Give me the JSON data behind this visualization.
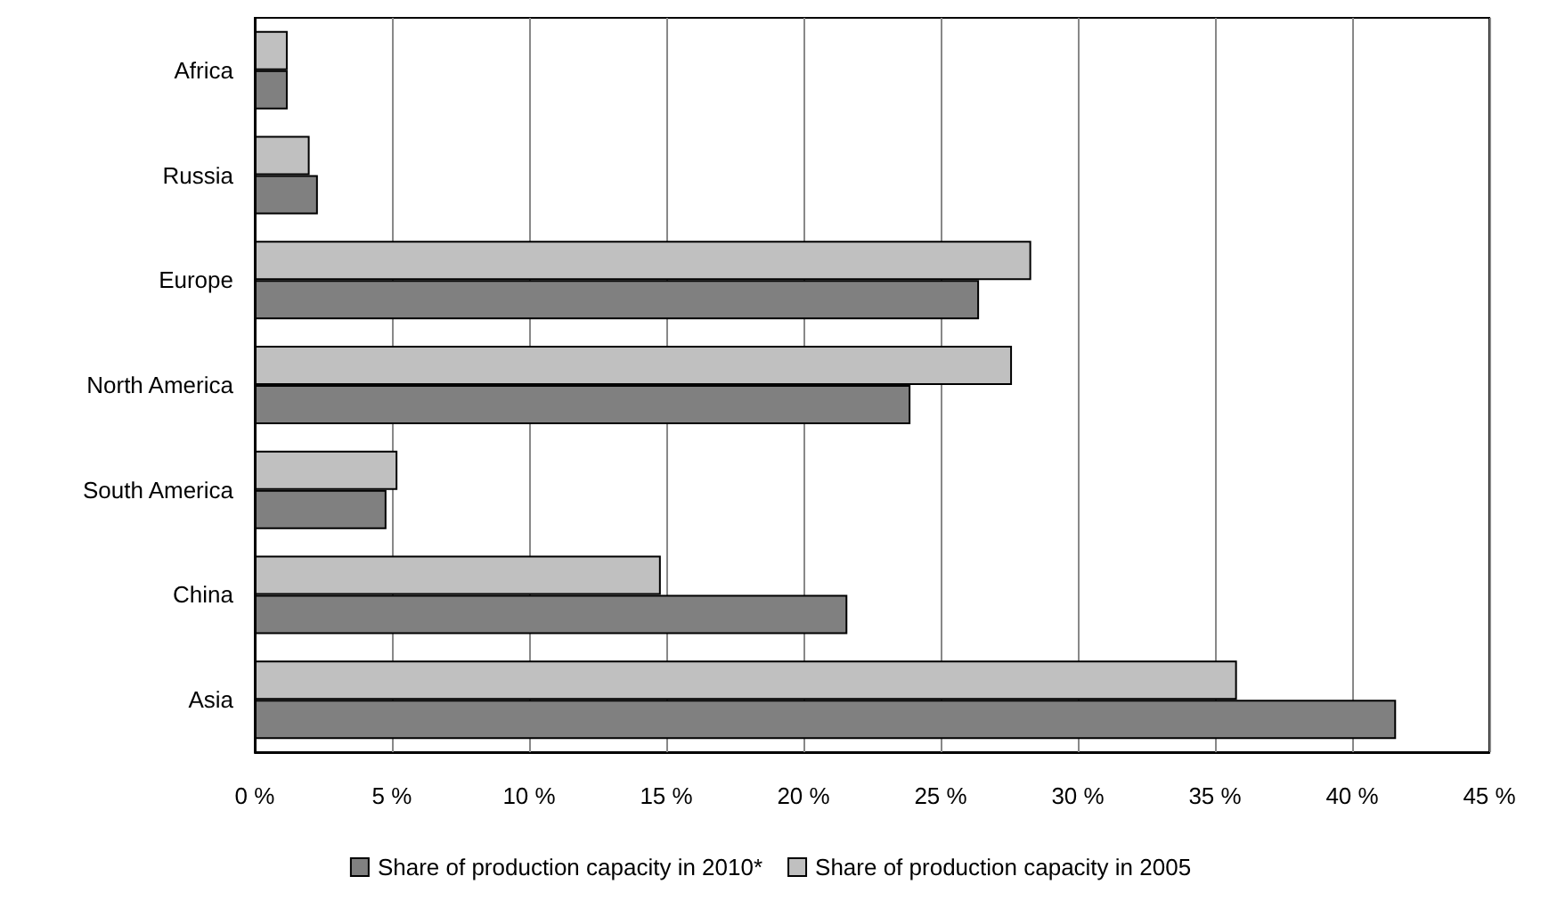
{
  "chart_data": {
    "type": "bar",
    "orientation": "horizontal",
    "categories": [
      "Africa",
      "Russia",
      "Europe",
      "North America",
      "South America",
      "China",
      "Asia"
    ],
    "series": [
      {
        "name": "Share of production capacity in 2010*",
        "color": "#808080",
        "values": [
          1.2,
          2.3,
          26.4,
          23.9,
          4.8,
          21.6,
          41.6
        ]
      },
      {
        "name": "Share of production capacity in 2005",
        "color": "#c0c0c0",
        "values": [
          1.2,
          2.0,
          28.3,
          27.6,
          5.2,
          14.8,
          35.8
        ]
      }
    ],
    "xlim": [
      0,
      45
    ],
    "xticks": [
      {
        "value": 0,
        "label": "0 %"
      },
      {
        "value": 5,
        "label": "5 %"
      },
      {
        "value": 10,
        "label": "10 %"
      },
      {
        "value": 15,
        "label": "15 %"
      },
      {
        "value": 20,
        "label": "20 %"
      },
      {
        "value": 25,
        "label": "25 %"
      },
      {
        "value": 30,
        "label": "30 %"
      },
      {
        "value": 35,
        "label": "35 %"
      },
      {
        "value": 40,
        "label": "40 %"
      },
      {
        "value": 45,
        "label": "45 %"
      }
    ],
    "grid": "x",
    "legend": "bottom"
  }
}
